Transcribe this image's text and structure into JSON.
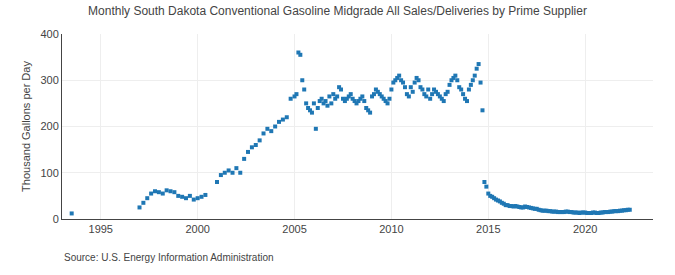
{
  "chart_data": {
    "type": "scatter",
    "title": "Monthly South Dakota Conventional Gasoline Midgrade All Sales/Deliveries by Prime Supplier",
    "y_label": "Thousand Gallons per Day",
    "annotations": [
      "Source: U.S. Energy Information Administration"
    ],
    "marker": "square",
    "grid": true,
    "xlim": [
      1993.0,
      2023.5
    ],
    "xticks": [
      1995,
      2000,
      2005,
      2010,
      2015,
      2020
    ],
    "ylim": [
      0,
      400
    ],
    "yticks": [
      0,
      100,
      200,
      300,
      400
    ],
    "x": [
      1993.5,
      1997.0,
      1997.2,
      1997.4,
      1997.6,
      1997.8,
      1998.0,
      1998.2,
      1998.4,
      1998.6,
      1998.8,
      1999.0,
      1999.2,
      1999.4,
      1999.6,
      1999.8,
      2000.0,
      2000.2,
      2000.4,
      2001.0,
      2001.2,
      2001.4,
      2001.6,
      2001.8,
      2002.0,
      2002.2,
      2002.4,
      2002.6,
      2002.8,
      2003.0,
      2003.2,
      2003.4,
      2003.6,
      2003.8,
      2004.0,
      2004.2,
      2004.4,
      2004.6,
      2004.8,
      2005.0,
      2005.1,
      2005.2,
      2005.3,
      2005.4,
      2005.5,
      2005.6,
      2005.7,
      2005.8,
      2005.9,
      2006.0,
      2006.1,
      2006.2,
      2006.3,
      2006.4,
      2006.5,
      2006.6,
      2006.7,
      2006.8,
      2006.9,
      2007.0,
      2007.1,
      2007.2,
      2007.3,
      2007.4,
      2007.5,
      2007.6,
      2007.7,
      2007.8,
      2007.9,
      2008.0,
      2008.1,
      2008.2,
      2008.3,
      2008.4,
      2008.5,
      2008.6,
      2008.7,
      2008.8,
      2008.9,
      2009.0,
      2009.1,
      2009.2,
      2009.3,
      2009.4,
      2009.5,
      2009.6,
      2009.7,
      2009.8,
      2009.9,
      2010.0,
      2010.1,
      2010.2,
      2010.3,
      2010.4,
      2010.5,
      2010.6,
      2010.7,
      2010.8,
      2010.9,
      2011.0,
      2011.1,
      2011.2,
      2011.3,
      2011.4,
      2011.5,
      2011.6,
      2011.7,
      2011.8,
      2011.9,
      2012.0,
      2012.1,
      2012.2,
      2012.3,
      2012.4,
      2012.5,
      2012.6,
      2012.7,
      2012.8,
      2012.9,
      2013.0,
      2013.1,
      2013.2,
      2013.3,
      2013.4,
      2013.5,
      2013.6,
      2013.7,
      2013.8,
      2013.9,
      2014.0,
      2014.1,
      2014.2,
      2014.3,
      2014.4,
      2014.5,
      2014.6,
      2014.7,
      2014.8,
      2014.9,
      2015.0,
      2015.1,
      2015.2,
      2015.3,
      2015.4,
      2015.5,
      2015.6,
      2015.7,
      2015.8,
      2015.9,
      2016.0,
      2016.1,
      2016.2,
      2016.3,
      2016.4,
      2016.5,
      2016.6,
      2016.7,
      2016.8,
      2016.9,
      2017.0,
      2017.1,
      2017.2,
      2017.3,
      2017.4,
      2017.5,
      2017.6,
      2017.7,
      2017.8,
      2017.9,
      2018.0,
      2018.1,
      2018.2,
      2018.3,
      2018.4,
      2018.5,
      2018.6,
      2018.7,
      2018.8,
      2018.9,
      2019.0,
      2019.1,
      2019.2,
      2019.3,
      2019.4,
      2019.5,
      2019.6,
      2019.7,
      2019.8,
      2019.9,
      2020.0,
      2020.1,
      2020.2,
      2020.3,
      2020.4,
      2020.5,
      2020.6,
      2020.7,
      2020.8,
      2020.9,
      2021.0,
      2021.1,
      2021.2,
      2021.3,
      2021.4,
      2021.5,
      2021.6,
      2021.7,
      2021.8,
      2021.9,
      2022.0,
      2022.1,
      2022.2,
      2022.3
    ],
    "values": [
      12,
      25,
      35,
      45,
      55,
      60,
      58,
      55,
      62,
      60,
      58,
      50,
      48,
      45,
      50,
      42,
      45,
      48,
      52,
      80,
      95,
      100,
      105,
      100,
      110,
      100,
      130,
      145,
      155,
      160,
      170,
      185,
      195,
      190,
      200,
      210,
      215,
      220,
      260,
      265,
      270,
      360,
      355,
      300,
      280,
      250,
      240,
      235,
      230,
      250,
      195,
      240,
      255,
      260,
      250,
      255,
      245,
      265,
      250,
      270,
      260,
      265,
      285,
      280,
      260,
      255,
      260,
      265,
      270,
      260,
      255,
      250,
      255,
      260,
      265,
      255,
      240,
      235,
      230,
      265,
      270,
      280,
      275,
      270,
      265,
      260,
      255,
      250,
      260,
      280,
      295,
      300,
      305,
      310,
      300,
      295,
      285,
      270,
      265,
      285,
      275,
      295,
      305,
      300,
      285,
      280,
      270,
      265,
      280,
      260,
      270,
      280,
      275,
      270,
      265,
      260,
      255,
      270,
      275,
      290,
      300,
      305,
      310,
      300,
      285,
      280,
      270,
      260,
      255,
      280,
      290,
      300,
      310,
      325,
      335,
      295,
      235,
      80,
      70,
      55,
      50,
      48,
      45,
      42,
      40,
      38,
      35,
      33,
      30,
      30,
      28,
      28,
      27,
      28,
      27,
      26,
      25,
      25,
      27,
      26,
      25,
      24,
      23,
      22,
      22,
      20,
      19,
      18,
      18,
      18,
      17,
      17,
      16,
      16,
      16,
      15,
      15,
      15,
      15,
      16,
      16,
      15,
      15,
      14,
      14,
      14,
      13,
      14,
      14,
      14,
      13,
      13,
      13,
      14,
      14,
      13,
      13,
      14,
      14,
      15,
      15,
      15,
      16,
      16,
      17,
      17,
      17,
      18,
      18,
      19,
      19,
      20,
      20
    ]
  }
}
